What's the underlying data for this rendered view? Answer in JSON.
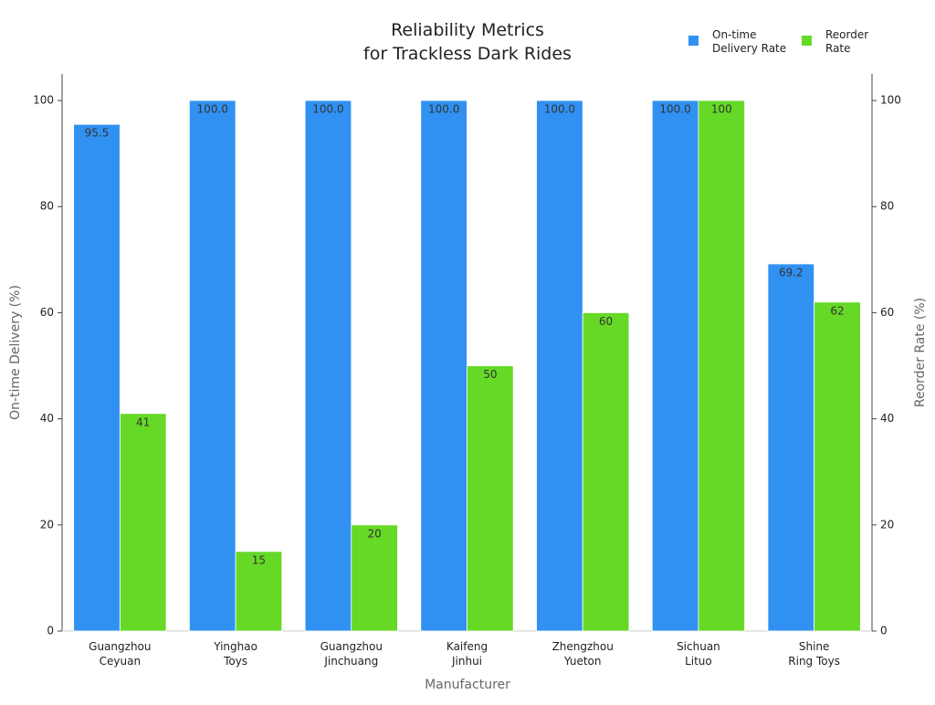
{
  "chart_data": {
    "type": "bar",
    "title": "Reliability Metrics\nfor Trackless Dark Rides",
    "x_label": "Manufacturer",
    "y_label": "On-time Delivery (%)",
    "y2_label": "Reorder Rate (%)",
    "categories": [
      "Guangzhou\nCeyuan",
      "Yinghao\nToys",
      "Guangzhou\nJinchuang",
      "Kaifeng\nJinhui",
      "Zhengzhou\nYueton",
      "Sichuan\nLituo",
      "Shine\nRing Toys"
    ],
    "series": [
      {
        "name": "On-time\nDelivery Rate",
        "color": "#3091f2",
        "values": [
          95.5,
          100,
          100,
          100,
          100,
          100,
          69.2
        ],
        "value_labels": [
          "95.5",
          "100.0",
          "100.0",
          "100.0",
          "100.0",
          "100.0",
          "69.2"
        ]
      },
      {
        "name": "Reorder\nRate",
        "color": "#65d926",
        "axis": "y2",
        "values": [
          41,
          15,
          20,
          50,
          60,
          100,
          62
        ]
      }
    ],
    "ylim": [
      0,
      105
    ],
    "yticks": [
      0,
      20,
      40,
      60,
      80,
      100
    ],
    "y2lim": [
      0,
      105
    ],
    "y2ticks": [
      0,
      20,
      40,
      60,
      80,
      100
    ],
    "grid": false,
    "legend": "top-right"
  }
}
